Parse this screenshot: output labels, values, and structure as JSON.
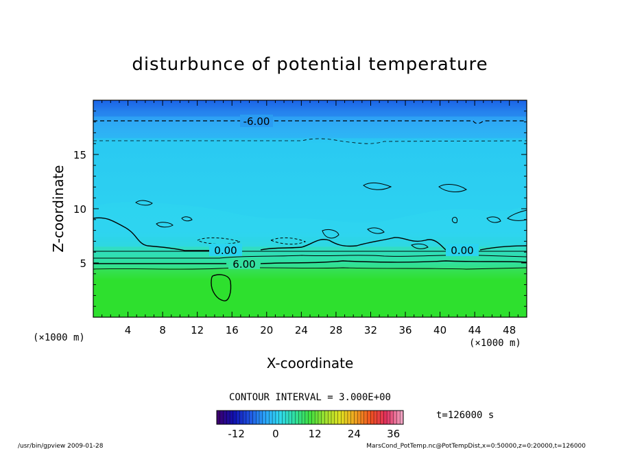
{
  "chart_data": {
    "type": "heatmap",
    "title": "disturbunce of potential temperature",
    "xlabel": "X-coordinate",
    "ylabel": "Z-coordinate",
    "x_unit_left": "(×1000 m)",
    "x_unit_right": "(×1000 m)",
    "xlim": [
      0,
      50
    ],
    "ylim": [
      0,
      20
    ],
    "x_ticks": [
      "4",
      "8",
      "12",
      "16",
      "20",
      "24",
      "28",
      "32",
      "36",
      "40",
      "44",
      "48"
    ],
    "y_ticks": [
      "5",
      "10",
      "15"
    ],
    "contour_labels": [
      "-6.00",
      "0.00",
      "0.00",
      "6.00"
    ],
    "contour_interval": "CONTOUR INTERVAL = 3.000E+00",
    "time_label": "t=126000 s",
    "colorbar": {
      "range": [
        -18,
        39
      ],
      "ticks": [
        "-12",
        "0",
        "12",
        "24",
        "36"
      ],
      "colors": [
        "#3a0070",
        "#1010b0",
        "#1e50e0",
        "#2aa0f8",
        "#30d8f0",
        "#30e0a0",
        "#40e040",
        "#a0e030",
        "#e0e020",
        "#f0a020",
        "#f05020",
        "#e03060",
        "#f0a0c0"
      ]
    },
    "bands": [
      {
        "z_range": [
          0,
          4.5
        ],
        "value_range": [
          12,
          15
        ],
        "color": "#2fe02f"
      },
      {
        "z_range": [
          4.5,
          6.5
        ],
        "value_range": [
          3,
          12
        ],
        "color": "#30e0a0"
      },
      {
        "z_range": [
          6.5,
          16.5
        ],
        "value_range": [
          -3,
          0
        ],
        "color": "#28d0f0"
      },
      {
        "z_range": [
          16.5,
          18.5
        ],
        "value_range": [
          -6,
          -3
        ],
        "color": "#2fa8f5"
      },
      {
        "z_range": [
          18.5,
          20
        ],
        "value_range": [
          -12,
          -6
        ],
        "color": "#1d6ee8"
      }
    ]
  },
  "footer": {
    "left": "/usr/bin/gpview   2009-01-28",
    "right": "MarsCond_PotTemp.nc@PotTempDist,x=0:50000,z=0:20000,t=126000"
  }
}
